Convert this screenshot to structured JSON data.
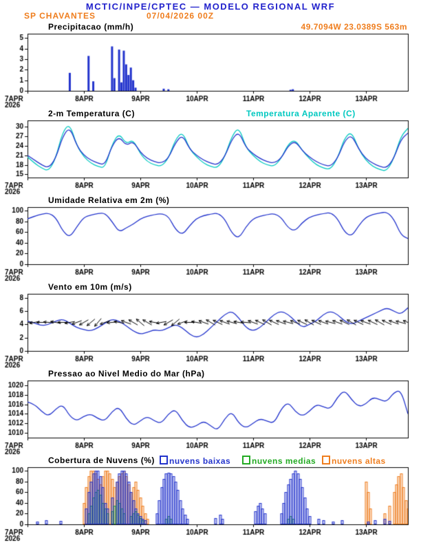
{
  "header": {
    "title": "MCTIC/INPE/CPTEC — MODELO REGIONAL WRF",
    "station": "SP CHAVANTES",
    "run": "07/04/2026 00Z",
    "coords": "49.7094W 23.0389S 563m"
  },
  "colors": {
    "header_blue": "#2222cc",
    "orange": "#ef7d1d",
    "blue": "#2233cc",
    "cyan": "#00c8c0",
    "green": "#22aa22",
    "black": "#000000"
  },
  "axis": {
    "hours_total": 162,
    "step_hours": 3,
    "xticks": [
      {
        "t": 0,
        "label": "7APR",
        "sub": "2026"
      },
      {
        "t": 24,
        "label": "8APR"
      },
      {
        "t": 48,
        "label": "9APR"
      },
      {
        "t": 72,
        "label": "10APR"
      },
      {
        "t": 96,
        "label": "11APR"
      },
      {
        "t": 120,
        "label": "12APR"
      },
      {
        "t": 144,
        "label": "13APR"
      }
    ]
  },
  "chart_data": [
    {
      "type": "bar",
      "title": "Precipitacao (mm/h)",
      "ylim": [
        0,
        5.4
      ],
      "yticks": [
        0,
        1,
        2,
        3,
        4,
        5
      ],
      "color": "blue",
      "bars": [
        [
          18,
          1.7
        ],
        [
          26,
          3.3
        ],
        [
          28,
          0.9
        ],
        [
          36,
          4.2
        ],
        [
          37,
          1.2
        ],
        [
          39,
          3.9
        ],
        [
          40,
          0.8
        ],
        [
          41,
          3.8
        ],
        [
          42,
          2.5
        ],
        [
          43,
          1.5
        ],
        [
          44,
          2.2
        ],
        [
          45,
          1.0
        ],
        [
          46,
          0.3
        ],
        [
          58,
          0.2
        ],
        [
          60,
          0.15
        ],
        [
          112,
          0.1
        ],
        [
          113,
          0.15
        ]
      ]
    },
    {
      "type": "line",
      "title": "2-m Temperatura (C)",
      "title2": "Temperatura Aparente (C)",
      "ylim": [
        14,
        32
      ],
      "yticks": [
        15,
        18,
        21,
        24,
        27,
        30
      ],
      "series": [
        {
          "name": "Temperatura Aparente (C)",
          "color": "cyan",
          "values": [
            20.5,
            18.5,
            17,
            16,
            20,
            28.5,
            31,
            24,
            20.5,
            18.5,
            17.5,
            17,
            24.5,
            28,
            24.5,
            26,
            21.5,
            19,
            18,
            17.5,
            20,
            26,
            28.5,
            23,
            20.5,
            18.5,
            17.5,
            17,
            20.5,
            27,
            30,
            23.5,
            21,
            19,
            18,
            17.5,
            20,
            24.5,
            26,
            22.5,
            20,
            18,
            17,
            16.5,
            20,
            26.5,
            28.5,
            23,
            19.5,
            17.5,
            16.5,
            16,
            20,
            27,
            29.5
          ]
        },
        {
          "name": "2-m Temperatura (C)",
          "color": "blue",
          "values": [
            21,
            19.5,
            18,
            17,
            20,
            27,
            30,
            24,
            21,
            19.5,
            18.5,
            18,
            24,
            27,
            24,
            25.5,
            22,
            20,
            19,
            18.5,
            20,
            25,
            27.5,
            23,
            21,
            19.5,
            18.5,
            18,
            20.5,
            26,
            28.5,
            23.5,
            21.5,
            20,
            19,
            18.5,
            20,
            24,
            25.5,
            22.5,
            20.5,
            19,
            18,
            17.5,
            20,
            25.5,
            27.5,
            23,
            20,
            18.5,
            17.5,
            17,
            20,
            26,
            28
          ]
        }
      ]
    },
    {
      "type": "line",
      "title": "Umidade Relativa em 2m (%)",
      "ylim": [
        0,
        107
      ],
      "yticks": [
        0,
        20,
        40,
        60,
        80,
        100
      ],
      "series": [
        {
          "name": "Umidade Relativa em 2m (%)",
          "color": "blue",
          "values": [
            85,
            90,
            94,
            96,
            88,
            62,
            50,
            70,
            88,
            92,
            95,
            96,
            80,
            60,
            68,
            75,
            85,
            90,
            93,
            95,
            90,
            65,
            55,
            72,
            86,
            91,
            94,
            96,
            85,
            58,
            48,
            70,
            85,
            90,
            93,
            95,
            88,
            68,
            62,
            78,
            88,
            92,
            95,
            97,
            86,
            60,
            52,
            72,
            88,
            93,
            96,
            98,
            85,
            55,
            48
          ]
        }
      ]
    },
    {
      "type": "wind",
      "title": "Vento em 10m (m/s)",
      "ylim": [
        0,
        8.6
      ],
      "yticks": [
        0,
        2,
        4,
        6,
        8
      ],
      "series": [
        {
          "name": "Velocidade do Vento (m/s)",
          "color": "blue",
          "values": [
            4.5,
            4.2,
            3.8,
            4,
            4.5,
            4.8,
            4.2,
            3.5,
            3.2,
            3,
            3.5,
            4.2,
            4.8,
            4.5,
            3.8,
            3,
            2.5,
            2.8,
            3.2,
            3,
            3.5,
            4,
            3.5,
            2.5,
            2,
            2.5,
            3.5,
            4.5,
            5.5,
            6,
            5,
            3.5,
            3,
            3.5,
            4.5,
            5.5,
            6,
            5.5,
            4.5,
            3.5,
            4,
            4.5,
            5.5,
            6,
            5.5,
            4.5,
            4,
            4.5,
            5,
            5.5,
            6,
            6.5,
            6,
            5.5,
            6.5
          ]
        }
      ],
      "arrows": {
        "y": 4.3,
        "color": "black",
        "dirs_deg": [
          185,
          190,
          180,
          175,
          170,
          180,
          190,
          200,
          210,
          220,
          230,
          200,
          185,
          170,
          160,
          150,
          140,
          150,
          170,
          190,
          210,
          220,
          200,
          180,
          170,
          160,
          150,
          155,
          160,
          165,
          170,
          175,
          160,
          155,
          150,
          155,
          160,
          165,
          160,
          155,
          150,
          155,
          160,
          165,
          160,
          155,
          150,
          155,
          160,
          155,
          150,
          155,
          160,
          165,
          160
        ]
      }
    },
    {
      "type": "line",
      "title": "Pressao ao Nivel Medio do Mar (hPa)",
      "ylim": [
        1009,
        1021
      ],
      "yticks": [
        1010,
        1012,
        1014,
        1016,
        1018,
        1020
      ],
      "series": [
        {
          "name": "Pressao ao Nivel Medio do Mar (hPa)",
          "color": "blue",
          "values": [
            1016.5,
            1016,
            1014.5,
            1013.5,
            1015,
            1016,
            1013.5,
            1012.5,
            1013.5,
            1014,
            1013,
            1012.5,
            1014.5,
            1015.5,
            1013,
            1011.5,
            1012.5,
            1013.5,
            1012.5,
            1012,
            1014,
            1015,
            1012.5,
            1011,
            1011.5,
            1012.5,
            1011.5,
            1010.5,
            1013,
            1014.5,
            1012,
            1011,
            1012,
            1013,
            1012.5,
            1012,
            1015,
            1016.5,
            1014.5,
            1013.5,
            1014.5,
            1016,
            1015.5,
            1015,
            1017.5,
            1019,
            1017,
            1015.5,
            1016,
            1017.5,
            1017,
            1016.5,
            1018.5,
            1019,
            1014
          ]
        }
      ]
    },
    {
      "type": "cloudbar",
      "title": "Cobertura de Nuvens (%)",
      "ylim": [
        0,
        107
      ],
      "yticks": [
        0,
        20,
        40,
        60,
        80,
        100
      ],
      "legend": [
        {
          "label": "nuvens baixas",
          "color": "blue"
        },
        {
          "label": "nuvens medias",
          "color": "green"
        },
        {
          "label": "nuvens altas",
          "color": "orange"
        }
      ],
      "series": [
        {
          "name": "nuvens altas",
          "color": "orange",
          "bars": [
            [
              24,
              40
            ],
            [
              25,
              70
            ],
            [
              26,
              90
            ],
            [
              27,
              100
            ],
            [
              28,
              100
            ],
            [
              29,
              95
            ],
            [
              30,
              85
            ],
            [
              31,
              75
            ],
            [
              32,
              90
            ],
            [
              33,
              100
            ],
            [
              34,
              100
            ],
            [
              35,
              95
            ],
            [
              36,
              85
            ],
            [
              37,
              70
            ],
            [
              38,
              80
            ],
            [
              39,
              90
            ],
            [
              40,
              95
            ],
            [
              41,
              100
            ],
            [
              42,
              90
            ],
            [
              43,
              75
            ],
            [
              44,
              60
            ],
            [
              45,
              70
            ],
            [
              46,
              80
            ],
            [
              47,
              65
            ],
            [
              48,
              50
            ],
            [
              49,
              35
            ],
            [
              50,
              20
            ],
            [
              51,
              10
            ],
            [
              144,
              80
            ],
            [
              145,
              60
            ],
            [
              146,
              30
            ],
            [
              152,
              20
            ],
            [
              154,
              35
            ],
            [
              156,
              60
            ],
            [
              157,
              75
            ],
            [
              158,
              90
            ],
            [
              159,
              95
            ],
            [
              160,
              70
            ],
            [
              161,
              45
            ],
            [
              162,
              30
            ]
          ]
        },
        {
          "name": "nuvens medias",
          "color": "green",
          "bars": [
            [
              26,
              20
            ],
            [
              27,
              35
            ],
            [
              28,
              50
            ],
            [
              29,
              60
            ],
            [
              30,
              65
            ],
            [
              31,
              55
            ],
            [
              32,
              40
            ],
            [
              33,
              30
            ],
            [
              34,
              20
            ],
            [
              36,
              25
            ],
            [
              37,
              35
            ],
            [
              38,
              45
            ],
            [
              39,
              40
            ],
            [
              40,
              30
            ],
            [
              41,
              20
            ],
            [
              44,
              15
            ],
            [
              45,
              20
            ],
            [
              46,
              25
            ],
            [
              47,
              18
            ],
            [
              48,
              12
            ],
            [
              49,
              8
            ],
            [
              59,
              10
            ],
            [
              60,
              15
            ],
            [
              61,
              10
            ],
            [
              111,
              10
            ],
            [
              112,
              15
            ],
            [
              113,
              10
            ]
          ]
        },
        {
          "name": "nuvens baixas",
          "color": "blue",
          "bars": [
            [
              4,
              5
            ],
            [
              8,
              8
            ],
            [
              14,
              6
            ],
            [
              25,
              30
            ],
            [
              26,
              60
            ],
            [
              27,
              80
            ],
            [
              28,
              95
            ],
            [
              29,
              100
            ],
            [
              30,
              100
            ],
            [
              31,
              90
            ],
            [
              32,
              70
            ],
            [
              33,
              40
            ],
            [
              34,
              30
            ],
            [
              36,
              50
            ],
            [
              38,
              80
            ],
            [
              39,
              95
            ],
            [
              40,
              100
            ],
            [
              41,
              100
            ],
            [
              42,
              95
            ],
            [
              43,
              80
            ],
            [
              44,
              60
            ],
            [
              45,
              45
            ],
            [
              46,
              30
            ],
            [
              47,
              20
            ],
            [
              48,
              15
            ],
            [
              49,
              10
            ],
            [
              50,
              8
            ],
            [
              55,
              20
            ],
            [
              56,
              45
            ],
            [
              57,
              70
            ],
            [
              58,
              85
            ],
            [
              59,
              95
            ],
            [
              60,
              97
            ],
            [
              61,
              95
            ],
            [
              62,
              90
            ],
            [
              63,
              80
            ],
            [
              64,
              65
            ],
            [
              65,
              45
            ],
            [
              66,
              30
            ],
            [
              67,
              18
            ],
            [
              68,
              10
            ],
            [
              80,
              12
            ],
            [
              82,
              18
            ],
            [
              83,
              10
            ],
            [
              97,
              25
            ],
            [
              98,
              35
            ],
            [
              99,
              40
            ],
            [
              100,
              30
            ],
            [
              101,
              20
            ],
            [
              108,
              20
            ],
            [
              109,
              40
            ],
            [
              110,
              60
            ],
            [
              111,
              75
            ],
            [
              112,
              85
            ],
            [
              113,
              95
            ],
            [
              114,
              100
            ],
            [
              115,
              95
            ],
            [
              116,
              85
            ],
            [
              117,
              70
            ],
            [
              118,
              50
            ],
            [
              119,
              30
            ],
            [
              120,
              15
            ],
            [
              124,
              10
            ],
            [
              126,
              8
            ],
            [
              130,
              5
            ],
            [
              134,
              8
            ],
            [
              145,
              5
            ],
            [
              148,
              8
            ],
            [
              152,
              10
            ],
            [
              154,
              6
            ]
          ]
        }
      ]
    }
  ]
}
